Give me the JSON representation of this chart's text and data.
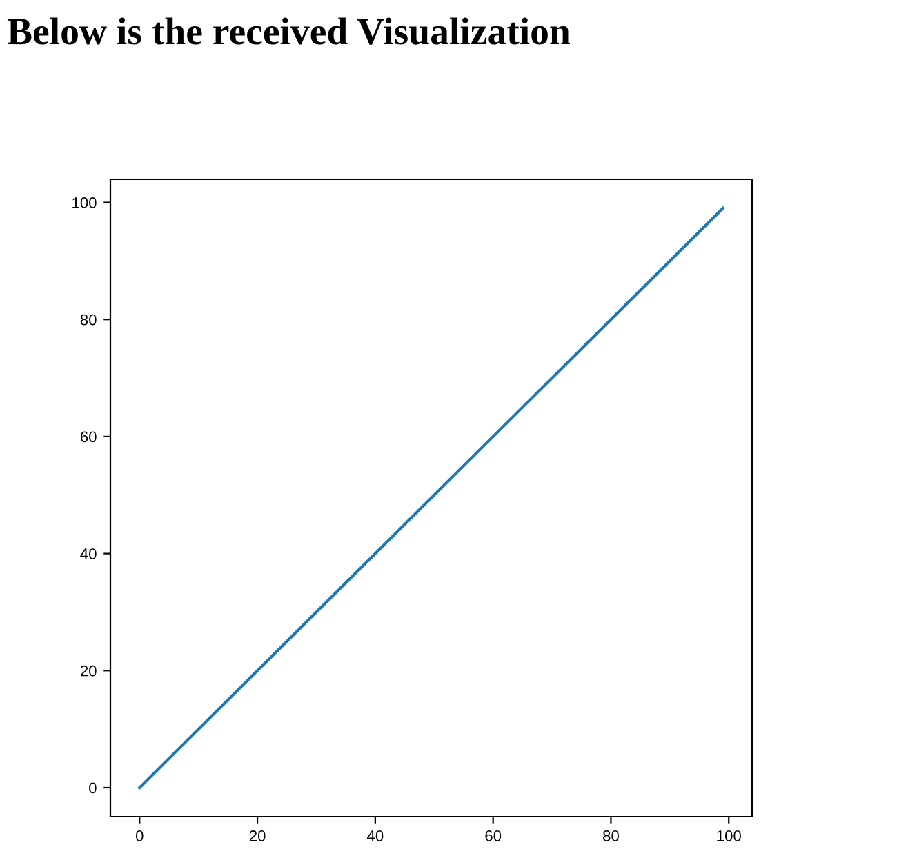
{
  "chart_data": {
    "type": "line",
    "title": "Below is the received Visualization",
    "x": [
      0,
      99
    ],
    "series": [
      {
        "color": "#1f77b4",
        "values": [
          0,
          99
        ]
      }
    ],
    "xlim": [
      -4.95,
      103.95
    ],
    "ylim": [
      -4.95,
      103.95
    ],
    "xticks": [
      0,
      20,
      40,
      60,
      80,
      100
    ],
    "yticks": [
      0,
      20,
      40,
      60,
      80,
      100
    ],
    "grid": false,
    "legend": false
  }
}
